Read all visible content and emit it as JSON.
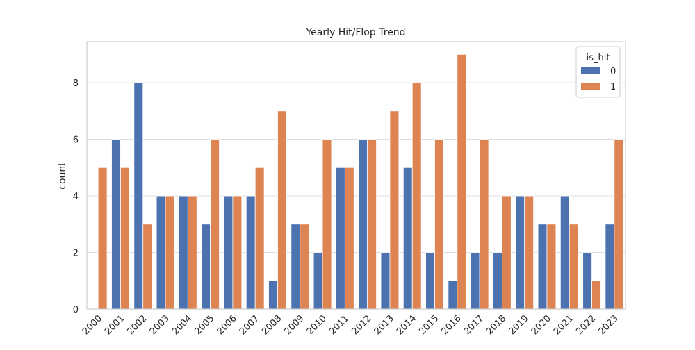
{
  "chart_data": {
    "type": "bar",
    "title": "Yearly Hit/Flop Trend",
    "xlabel": "",
    "ylabel": "count",
    "categories": [
      "2000",
      "2001",
      "2002",
      "2003",
      "2004",
      "2005",
      "2006",
      "2007",
      "2008",
      "2009",
      "2010",
      "2011",
      "2012",
      "2013",
      "2014",
      "2015",
      "2016",
      "2017",
      "2018",
      "2019",
      "2020",
      "2021",
      "2022",
      "2023"
    ],
    "series": [
      {
        "name": "0",
        "color": "#4c72b0",
        "values": [
          0,
          6,
          8,
          4,
          4,
          3,
          4,
          4,
          1,
          3,
          2,
          5,
          6,
          2,
          5,
          2,
          1,
          2,
          2,
          4,
          3,
          4,
          2,
          3
        ]
      },
      {
        "name": "1",
        "color": "#dd8452",
        "values": [
          5,
          5,
          3,
          4,
          4,
          6,
          4,
          5,
          7,
          3,
          6,
          5,
          6,
          7,
          8,
          6,
          9,
          6,
          4,
          4,
          3,
          3,
          1,
          6
        ]
      }
    ],
    "ylim": [
      0,
      9.45
    ],
    "yticks": [
      0,
      2,
      4,
      6,
      8
    ],
    "grid": true,
    "legend": {
      "title": "is_hit",
      "placement": "top-right"
    }
  }
}
